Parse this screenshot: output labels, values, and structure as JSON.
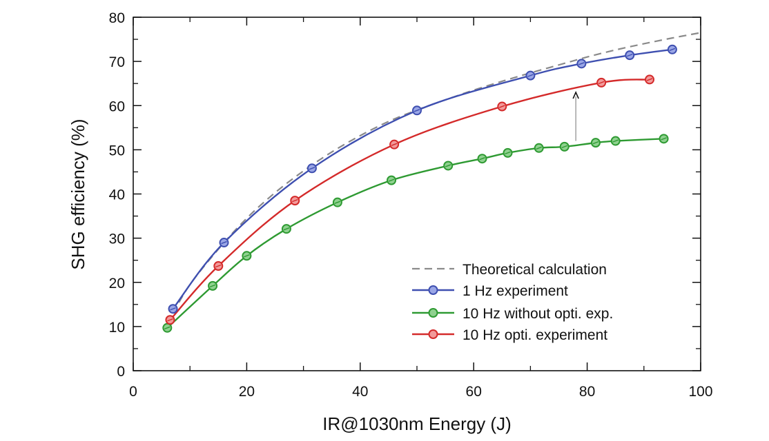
{
  "chart_data": {
    "type": "line",
    "title": "",
    "xlabel": "IR@1030nm Energy (J)",
    "ylabel": "SHG efficiency (%)",
    "xlim": [
      0,
      100
    ],
    "ylim": [
      0,
      80
    ],
    "xticks": [
      "0",
      "20",
      "40",
      "60",
      "80",
      "100"
    ],
    "yticks": [
      "0",
      "10",
      "20",
      "30",
      "40",
      "50",
      "60",
      "70",
      "80"
    ],
    "grid": false,
    "legend_position": "bottom-right",
    "series": [
      {
        "name": "Theoretical calculation",
        "style": "dashed",
        "color": "#8a8a8a",
        "x": [
          7,
          10,
          15,
          20,
          25,
          30,
          35,
          40,
          45,
          50,
          55,
          60,
          65,
          70,
          75,
          80,
          85,
          90,
          95,
          100
        ],
        "y": [
          13,
          19.5,
          27.5,
          34.5,
          40.3,
          45.2,
          49.5,
          53.2,
          56.4,
          59.0,
          61.3,
          63.5,
          65.5,
          67.4,
          69.2,
          71.0,
          72.6,
          74.0,
          75.3,
          76.5
        ]
      },
      {
        "name": "1 Hz experiment",
        "style": "solid",
        "color": "#3e4fb0",
        "x": [
          7,
          16,
          31.5,
          50,
          70,
          79,
          87.5,
          95
        ],
        "y": [
          14,
          29,
          45.8,
          58.9,
          66.8,
          69.5,
          71.4,
          72.7
        ]
      },
      {
        "name": "10 Hz without opti. exp.",
        "style": "solid",
        "color": "#2e9a32",
        "x": [
          6,
          14,
          20,
          27,
          36,
          45.5,
          55.5,
          61.5,
          66,
          71.5,
          76,
          81.5,
          85,
          93.5
        ],
        "y": [
          9.7,
          19.2,
          26,
          32.1,
          38.1,
          43.1,
          46.4,
          48,
          49.3,
          50.4,
          50.7,
          51.6,
          52,
          52.5
        ]
      },
      {
        "name": "10 Hz opti. experiment",
        "style": "solid",
        "color": "#d42a2a",
        "x": [
          6.5,
          15,
          28.5,
          46,
          65,
          82.5,
          91
        ],
        "y": [
          11.5,
          23.7,
          38.5,
          51.2,
          59.8,
          65.2,
          65.9
        ]
      }
    ],
    "annotations": [
      {
        "type": "arrow",
        "x": 78,
        "y_from": 52,
        "y_to": 63
      }
    ]
  },
  "legend": {
    "items": [
      {
        "label": "Theoretical calculation"
      },
      {
        "label": "1 Hz experiment"
      },
      {
        "label": "10 Hz without opti. exp."
      },
      {
        "label": "10 Hz opti. experiment"
      }
    ]
  }
}
